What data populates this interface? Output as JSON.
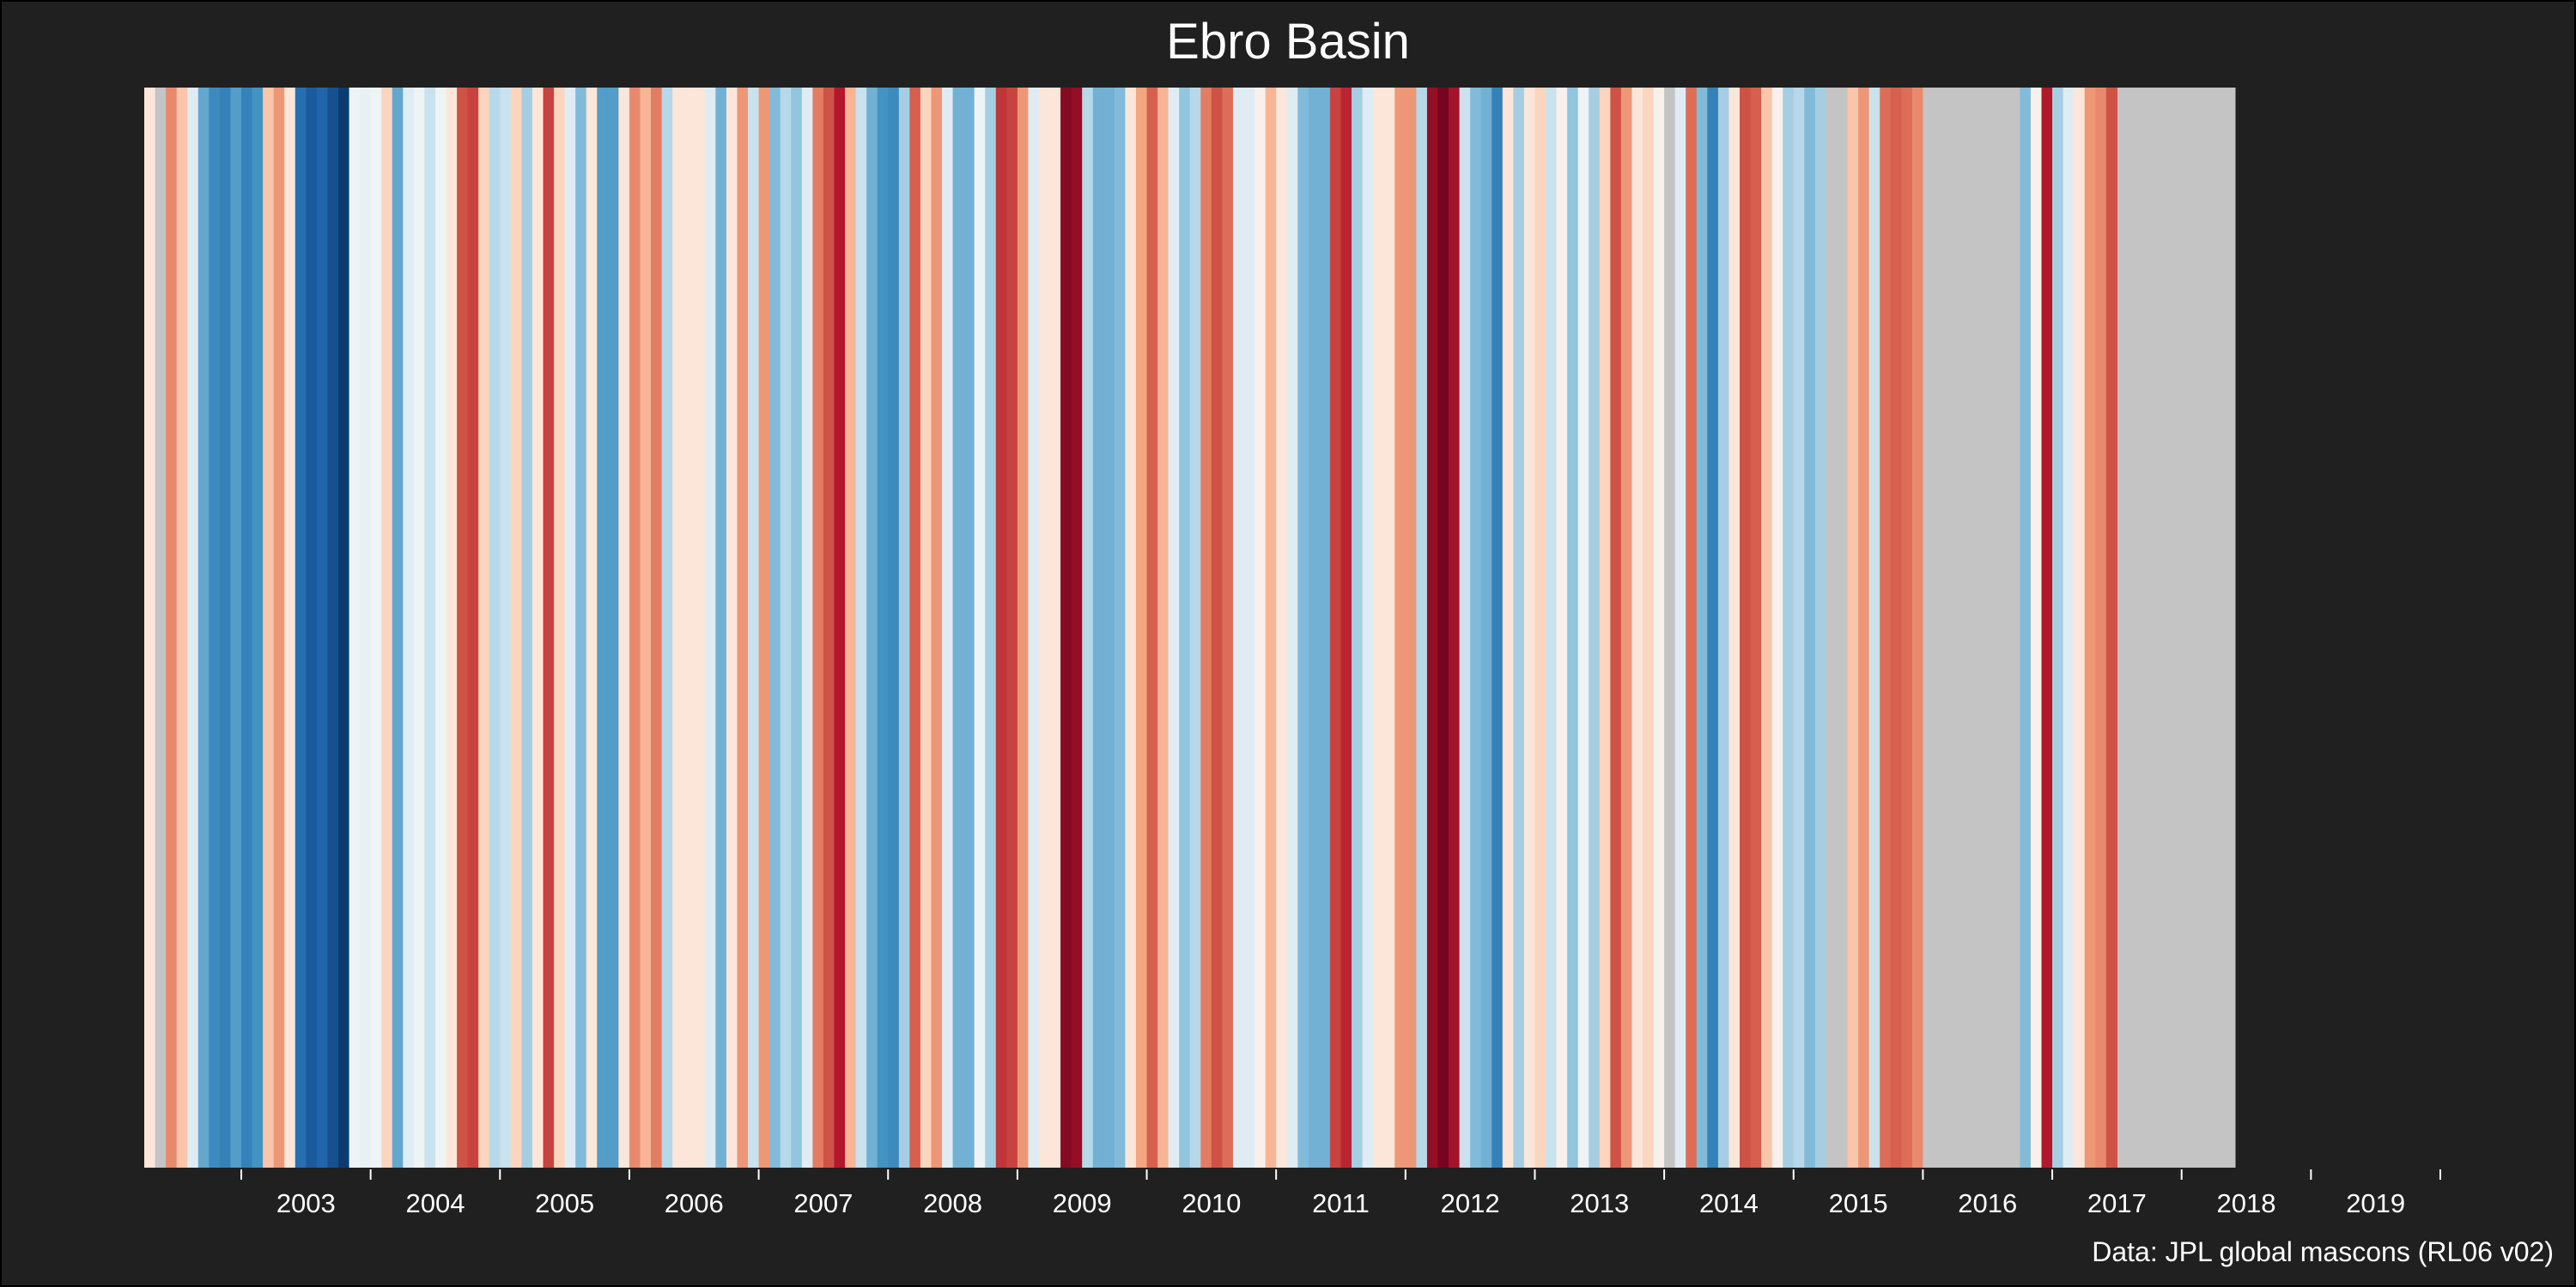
{
  "title": "Ebro Basin",
  "caption": "Data: JPL global mascons (RL06 v02)",
  "chart_data": {
    "type": "heatmap",
    "title": "Ebro Basin",
    "xlabel": "",
    "ylabel": "",
    "x_start": "2002-04",
    "x_end": "2019-12",
    "tick_labels": [
      "2003",
      "2004",
      "2005",
      "2006",
      "2007",
      "2008",
      "2009",
      "2010",
      "2011",
      "2012",
      "2013",
      "2014",
      "2015",
      "2016",
      "2017",
      "2018",
      "2019"
    ],
    "colormap": "RdBu_r",
    "value_range": [
      -1,
      1
    ],
    "missing_color": "#c4c4c4",
    "missing_periods": [
      [
        "2017-07",
        "2018-05"
      ]
    ],
    "grid": false,
    "legend": "none",
    "stripes": [
      {
        "month": "2002-04",
        "value": 0.05
      },
      {
        "month": "2002-05",
        "value": null
      },
      {
        "month": "2002-06",
        "value": 0.35
      },
      {
        "month": "2002-07",
        "value": 0.15
      },
      {
        "month": "2002-08",
        "value": -0.05
      },
      {
        "month": "2002-09",
        "value": -0.4
      },
      {
        "month": "2002-10",
        "value": -0.55
      },
      {
        "month": "2002-11",
        "value": -0.6
      },
      {
        "month": "2002-12",
        "value": -0.45
      },
      {
        "month": "2003-01",
        "value": -0.6
      },
      {
        "month": "2003-02",
        "value": -0.5
      },
      {
        "month": "2003-03",
        "value": 0.15
      },
      {
        "month": "2003-04",
        "value": 0.3
      },
      {
        "month": "2003-05",
        "value": 0.05
      },
      {
        "month": "2003-06",
        "value": -0.7
      },
      {
        "month": "2003-07",
        "value": -0.8
      },
      {
        "month": "2003-08",
        "value": -0.75
      },
      {
        "month": "2003-09",
        "value": -0.85
      },
      {
        "month": "2003-10",
        "value": -0.95
      },
      {
        "month": "2003-11",
        "value": -0.02
      },
      {
        "month": "2003-12",
        "value": -0.03
      },
      {
        "month": "2004-01",
        "value": -0.02
      },
      {
        "month": "2004-02",
        "value": 0.1
      },
      {
        "month": "2004-03",
        "value": -0.4
      },
      {
        "month": "2004-04",
        "value": -0.05
      },
      {
        "month": "2004-05",
        "value": -0.02
      },
      {
        "month": "2004-06",
        "value": -0.1
      },
      {
        "month": "2004-07",
        "value": -0.02
      },
      {
        "month": "2004-08",
        "value": 0.05
      },
      {
        "month": "2004-09",
        "value": 0.55
      },
      {
        "month": "2004-10",
        "value": 0.6
      },
      {
        "month": "2004-11",
        "value": 0.1
      },
      {
        "month": "2004-12",
        "value": -0.15
      },
      {
        "month": "2005-01",
        "value": -0.1
      },
      {
        "month": "2005-02",
        "value": 0.1
      },
      {
        "month": "2005-03",
        "value": -0.2
      },
      {
        "month": "2005-04",
        "value": 0.05
      },
      {
        "month": "2005-05",
        "value": 0.6
      },
      {
        "month": "2005-06",
        "value": 0.1
      },
      {
        "month": "2005-07",
        "value": -0.05
      },
      {
        "month": "2005-08",
        "value": -0.3
      },
      {
        "month": "2005-09",
        "value": 0.05
      },
      {
        "month": "2005-10",
        "value": -0.45
      },
      {
        "month": "2005-11",
        "value": -0.45
      },
      {
        "month": "2005-12",
        "value": 0.05
      },
      {
        "month": "2006-01",
        "value": 0.35
      },
      {
        "month": "2006-02",
        "value": 0.2
      },
      {
        "month": "2006-03",
        "value": 0.4
      },
      {
        "month": "2006-04",
        "value": -0.15
      },
      {
        "month": "2006-05",
        "value": 0.05
      },
      {
        "month": "2006-06",
        "value": 0.05
      },
      {
        "month": "2006-07",
        "value": 0.05
      },
      {
        "month": "2006-08",
        "value": -0.05
      },
      {
        "month": "2006-09",
        "value": -0.35
      },
      {
        "month": "2006-10",
        "value": 0.05
      },
      {
        "month": "2006-11",
        "value": 0.3
      },
      {
        "month": "2006-12",
        "value": -0.1
      },
      {
        "month": "2007-01",
        "value": 0.3
      },
      {
        "month": "2007-02",
        "value": -0.3
      },
      {
        "month": "2007-03",
        "value": -0.15
      },
      {
        "month": "2007-04",
        "value": -0.25
      },
      {
        "month": "2007-05",
        "value": -0.05
      },
      {
        "month": "2007-06",
        "value": 0.4
      },
      {
        "month": "2007-07",
        "value": 0.55
      },
      {
        "month": "2007-08",
        "value": 0.75
      },
      {
        "month": "2007-09",
        "value": 0.2
      },
      {
        "month": "2007-10",
        "value": -0.1
      },
      {
        "month": "2007-11",
        "value": -0.35
      },
      {
        "month": "2007-12",
        "value": -0.5
      },
      {
        "month": "2008-01",
        "value": -0.55
      },
      {
        "month": "2008-02",
        "value": -0.2
      },
      {
        "month": "2008-03",
        "value": 0.5
      },
      {
        "month": "2008-04",
        "value": 0.1
      },
      {
        "month": "2008-05",
        "value": 0.3
      },
      {
        "month": "2008-06",
        "value": -0.05
      },
      {
        "month": "2008-07",
        "value": -0.35
      },
      {
        "month": "2008-08",
        "value": -0.35
      },
      {
        "month": "2008-09",
        "value": -0.02
      },
      {
        "month": "2008-10",
        "value": -0.2
      },
      {
        "month": "2008-11",
        "value": 0.65
      },
      {
        "month": "2008-12",
        "value": 0.6
      },
      {
        "month": "2009-01",
        "value": 0.3
      },
      {
        "month": "2009-02",
        "value": -0.05
      },
      {
        "month": "2009-03",
        "value": 0.05
      },
      {
        "month": "2009-04",
        "value": 0.05
      },
      {
        "month": "2009-05",
        "value": 0.9
      },
      {
        "month": "2009-06",
        "value": 0.85
      },
      {
        "month": "2009-07",
        "value": -0.15
      },
      {
        "month": "2009-08",
        "value": -0.35
      },
      {
        "month": "2009-09",
        "value": -0.35
      },
      {
        "month": "2009-10",
        "value": -0.3
      },
      {
        "month": "2009-11",
        "value": 0.05
      },
      {
        "month": "2009-12",
        "value": 0.25
      },
      {
        "month": "2010-01",
        "value": 0.5
      },
      {
        "month": "2010-02",
        "value": 0.2
      },
      {
        "month": "2010-03",
        "value": -0.05
      },
      {
        "month": "2010-04",
        "value": -0.25
      },
      {
        "month": "2010-05",
        "value": -0.15
      },
      {
        "month": "2010-06",
        "value": 0.4
      },
      {
        "month": "2010-07",
        "value": 0.55
      },
      {
        "month": "2010-08",
        "value": 0.45
      },
      {
        "month": "2010-09",
        "value": -0.05
      },
      {
        "month": "2010-10",
        "value": -0.05
      },
      {
        "month": "2010-11",
        "value": 0.02
      },
      {
        "month": "2010-12",
        "value": 0.2
      },
      {
        "month": "2011-01",
        "value": 0.05
      },
      {
        "month": "2011-02",
        "value": -0.05
      },
      {
        "month": "2011-03",
        "value": -0.3
      },
      {
        "month": "2011-04",
        "value": -0.35
      },
      {
        "month": "2011-05",
        "value": -0.35
      },
      {
        "month": "2011-06",
        "value": 0.6
      },
      {
        "month": "2011-07",
        "value": 0.7
      },
      {
        "month": "2011-08",
        "value": -0.2
      },
      {
        "month": "2011-09",
        "value": -0.05
      },
      {
        "month": "2011-10",
        "value": 0.05
      },
      {
        "month": "2011-11",
        "value": 0.05
      },
      {
        "month": "2011-12",
        "value": 0.3
      },
      {
        "month": "2012-01",
        "value": 0.3
      },
      {
        "month": "2012-02",
        "value": -0.15
      },
      {
        "month": "2012-03",
        "value": 0.85
      },
      {
        "month": "2012-04",
        "value": 0.95
      },
      {
        "month": "2012-05",
        "value": 0.8
      },
      {
        "month": "2012-06",
        "value": -0.1
      },
      {
        "month": "2012-07",
        "value": -0.3
      },
      {
        "month": "2012-08",
        "value": -0.35
      },
      {
        "month": "2012-09",
        "value": -0.6
      },
      {
        "month": "2012-10",
        "value": 0.05
      },
      {
        "month": "2012-11",
        "value": -0.2
      },
      {
        "month": "2012-12",
        "value": 0.05
      },
      {
        "month": "2013-01",
        "value": 0.1
      },
      {
        "month": "2013-02",
        "value": -0.1
      },
      {
        "month": "2013-03",
        "value": 0.02
      },
      {
        "month": "2013-04",
        "value": -0.25
      },
      {
        "month": "2013-05",
        "value": -0.02
      },
      {
        "month": "2013-06",
        "value": -0.2
      },
      {
        "month": "2013-07",
        "value": 0.1
      },
      {
        "month": "2013-08",
        "value": 0.55
      },
      {
        "month": "2013-09",
        "value": 0.3
      },
      {
        "month": "2013-10",
        "value": 0.05
      },
      {
        "month": "2013-11",
        "value": 0.1
      },
      {
        "month": "2013-12",
        "value": 0.02
      },
      {
        "month": "2014-01",
        "value": null
      },
      {
        "month": "2014-02",
        "value": -0.05
      },
      {
        "month": "2014-03",
        "value": 0.45
      },
      {
        "month": "2014-04",
        "value": -0.3
      },
      {
        "month": "2014-05",
        "value": -0.6
      },
      {
        "month": "2014-06",
        "value": -0.2
      },
      {
        "month": "2014-07",
        "value": 0.05
      },
      {
        "month": "2014-08",
        "value": 0.55
      },
      {
        "month": "2014-09",
        "value": 0.5
      },
      {
        "month": "2014-10",
        "value": 0.15
      },
      {
        "month": "2014-11",
        "value": 0.02
      },
      {
        "month": "2014-12",
        "value": -0.2
      },
      {
        "month": "2015-01",
        "value": -0.15
      },
      {
        "month": "2015-02",
        "value": -0.3
      },
      {
        "month": "2015-03",
        "value": -0.2
      },
      {
        "month": "2015-04",
        "value": null
      },
      {
        "month": "2015-05",
        "value": null
      },
      {
        "month": "2015-06",
        "value": 0.15
      },
      {
        "month": "2015-07",
        "value": 0.3
      },
      {
        "month": "2015-08",
        "value": -0.1
      },
      {
        "month": "2015-09",
        "value": 0.45
      },
      {
        "month": "2015-10",
        "value": 0.5
      },
      {
        "month": "2015-11",
        "value": 0.45
      },
      {
        "month": "2015-12",
        "value": 0.35
      },
      {
        "month": "2016-01",
        "value": null
      },
      {
        "month": "2016-02",
        "value": null
      },
      {
        "month": "2016-03",
        "value": null
      },
      {
        "month": "2016-04",
        "value": null
      },
      {
        "month": "2016-05",
        "value": null
      },
      {
        "month": "2016-06",
        "value": null
      },
      {
        "month": "2016-07",
        "value": null
      },
      {
        "month": "2016-08",
        "value": null
      },
      {
        "month": "2016-09",
        "value": null
      },
      {
        "month": "2016-10",
        "value": -0.3
      },
      {
        "month": "2016-11",
        "value": 0.02
      },
      {
        "month": "2016-12",
        "value": 0.75
      },
      {
        "month": "2017-01",
        "value": -0.2
      },
      {
        "month": "2017-02",
        "value": -0.05
      },
      {
        "month": "2017-03",
        "value": 0.05
      },
      {
        "month": "2017-04",
        "value": 0.3
      },
      {
        "month": "2017-05",
        "value": 0.35
      },
      {
        "month": "2017-06",
        "value": 0.55
      }
    ]
  }
}
